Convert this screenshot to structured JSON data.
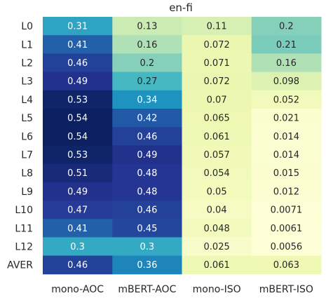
{
  "chart_data": {
    "type": "heatmap",
    "title": "en-fi",
    "xlabel": "",
    "ylabel": "",
    "columns": [
      "mono-AOC",
      "mBERT-AOC",
      "mono-ISO",
      "mBERT-ISO"
    ],
    "rows": [
      "L0",
      "L1",
      "L2",
      "L3",
      "L4",
      "L5",
      "L6",
      "L7",
      "L8",
      "L9",
      "L10",
      "L11",
      "L12",
      "AVER"
    ],
    "value_range": [
      0,
      0.55
    ],
    "colormap": "YlGnBu",
    "colorbar": false,
    "values": [
      [
        "0.31",
        "0.13",
        "0.11",
        "0.2"
      ],
      [
        "0.41",
        "0.16",
        "0.072",
        "0.21"
      ],
      [
        "0.46",
        "0.2",
        "0.071",
        "0.16"
      ],
      [
        "0.49",
        "0.27",
        "0.072",
        "0.098"
      ],
      [
        "0.53",
        "0.34",
        "0.07",
        "0.052"
      ],
      [
        "0.54",
        "0.42",
        "0.065",
        "0.021"
      ],
      [
        "0.54",
        "0.46",
        "0.061",
        "0.014"
      ],
      [
        "0.53",
        "0.49",
        "0.057",
        "0.014"
      ],
      [
        "0.51",
        "0.48",
        "0.054",
        "0.015"
      ],
      [
        "0.49",
        "0.48",
        "0.05",
        "0.012"
      ],
      [
        "0.47",
        "0.46",
        "0.04",
        "0.0071"
      ],
      [
        "0.41",
        "0.45",
        "0.048",
        "0.0061"
      ],
      [
        "0.3",
        "0.3",
        "0.025",
        "0.0056"
      ],
      [
        "0.46",
        "0.36",
        "0.061",
        "0.063"
      ]
    ]
  }
}
